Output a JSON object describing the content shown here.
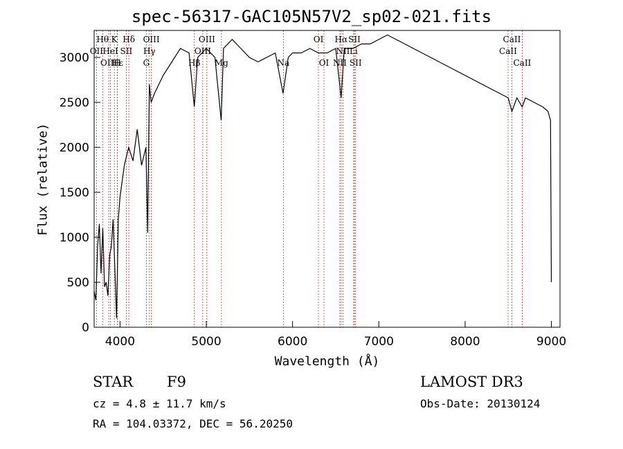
{
  "chart_data": {
    "type": "line",
    "title": "spec-56317-GAC105N57V2_sp02-021.fits",
    "xlabel": "Wavelength (Å)",
    "ylabel": "Flux (relative)",
    "xlim": [
      3700,
      9100
    ],
    "ylim": [
      0,
      3300
    ],
    "xticks": [
      4000,
      5000,
      6000,
      7000,
      8000,
      9000
    ],
    "yticks": [
      0,
      500,
      1000,
      1500,
      2000,
      2500,
      3000
    ],
    "series": [
      {
        "name": "flux",
        "x": [
          3700,
          3720,
          3740,
          3760,
          3780,
          3800,
          3820,
          3840,
          3860,
          3880,
          3900,
          3920,
          3940,
          3960,
          3980,
          4000,
          4050,
          4100,
          4150,
          4200,
          4250,
          4300,
          4320,
          4340,
          4360,
          4400,
          4500,
          4600,
          4700,
          4800,
          4861,
          4900,
          5000,
          5100,
          5172,
          5200,
          5300,
          5400,
          5500,
          5600,
          5700,
          5800,
          5890,
          5950,
          6000,
          6100,
          6200,
          6300,
          6400,
          6500,
          6563,
          6600,
          6700,
          6800,
          6900,
          7000,
          7100,
          7200,
          7300,
          7400,
          7500,
          7600,
          7700,
          7800,
          7900,
          8000,
          8100,
          8200,
          8300,
          8400,
          8500,
          8542,
          8600,
          8662,
          8700,
          8800,
          8900,
          8960,
          8990,
          9000
        ],
        "y": [
          400,
          300,
          900,
          1150,
          600,
          1100,
          450,
          500,
          350,
          800,
          900,
          1200,
          650,
          100,
          1200,
          1450,
          1800,
          2000,
          1850,
          2200,
          1800,
          2000,
          1050,
          2700,
          2500,
          2600,
          2800,
          2950,
          3100,
          3050,
          2450,
          3000,
          3100,
          3000,
          2300,
          3100,
          3200,
          3100,
          3000,
          2950,
          3000,
          3050,
          2600,
          3000,
          3050,
          3050,
          3100,
          3050,
          3050,
          3100,
          2550,
          3100,
          3100,
          3150,
          3150,
          3200,
          3250,
          3200,
          3150,
          3100,
          3050,
          3000,
          2950,
          2900,
          2850,
          2800,
          2750,
          2700,
          2650,
          2600,
          2550,
          2400,
          2550,
          2450,
          2550,
          2500,
          2450,
          2400,
          2300,
          500
        ]
      }
    ],
    "lines": [
      {
        "label": "Hθ",
        "x": 3798,
        "row": 0
      },
      {
        "label": "OII",
        "x": 3727,
        "row": 1
      },
      {
        "label": "OIII",
        "x": 3869,
        "row": 2
      },
      {
        "label": "K",
        "x": 3934,
        "row": 0
      },
      {
        "label": "HeI",
        "x": 3889,
        "row": 1
      },
      {
        "label": "Hε",
        "x": 3970,
        "row": 2
      },
      {
        "label": "SII",
        "x": 4072,
        "row": 1
      },
      {
        "label": "H",
        "x": 3968,
        "row": 2
      },
      {
        "label": "Hδ",
        "x": 4102,
        "row": 0
      },
      {
        "label": "OIII",
        "x": 4363,
        "row": 0
      },
      {
        "label": "Hγ",
        "x": 4340,
        "row": 1
      },
      {
        "label": "G",
        "x": 4305,
        "row": 2
      },
      {
        "label": "OIII",
        "x": 5007,
        "row": 0
      },
      {
        "label": "OIII",
        "x": 4959,
        "row": 1
      },
      {
        "label": "Hβ",
        "x": 4861,
        "row": 2
      },
      {
        "label": "Mg",
        "x": 5175,
        "row": 2
      },
      {
        "label": "Na",
        "x": 5893,
        "row": 2
      },
      {
        "label": "OI",
        "x": 6300,
        "row": 0
      },
      {
        "label": "OI",
        "x": 6364,
        "row": 2
      },
      {
        "label": "Hα",
        "x": 6563,
        "row": 0
      },
      {
        "label": "NII",
        "x": 6584,
        "row": 1
      },
      {
        "label": "NII",
        "x": 6548,
        "row": 2
      },
      {
        "label": "SII",
        "x": 6717,
        "row": 0
      },
      {
        "label": "Li",
        "x": 6708,
        "row": 1
      },
      {
        "label": "SII",
        "x": 6731,
        "row": 2
      },
      {
        "label": "CaII",
        "x": 8542,
        "row": 0
      },
      {
        "label": "CaII",
        "x": 8498,
        "row": 1
      },
      {
        "label": "CaII",
        "x": 8662,
        "row": 2
      }
    ]
  },
  "info": {
    "object_class": "STAR",
    "subclass": "F9",
    "survey": "LAMOST DR3",
    "cz": "cz = 4.8 ± 11.7 km/s",
    "obs_date": "Obs-Date: 20130124",
    "coords": "RA = 104.03372, DEC =  56.20250"
  },
  "colors": {
    "line_marker": "#c0392b",
    "spectrum": "#000000"
  }
}
